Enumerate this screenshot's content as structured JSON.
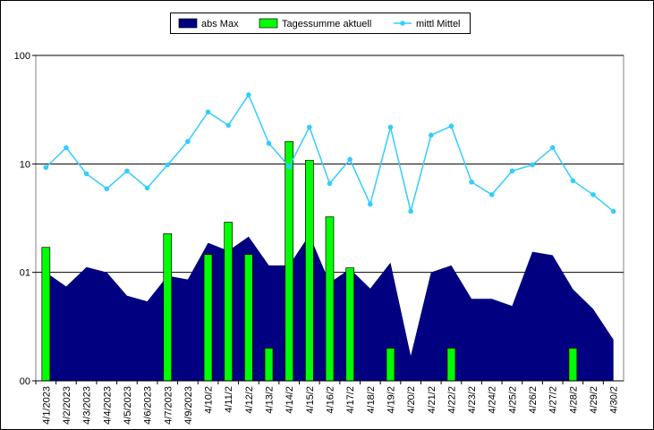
{
  "chart_data": {
    "type": "combo",
    "categories": [
      "4/1/2023",
      "4/2/2023",
      "4/3/2023",
      "4/4/2023",
      "4/5/2023",
      "4/6/2023",
      "4/7/2023",
      "4/9/2023",
      "4/10/2",
      "4/11/2",
      "4/12/2",
      "4/13/2",
      "4/14/2",
      "4/15/2",
      "4/16/2",
      "4/17/2",
      "4/18/2",
      "4/19/2",
      "4/20/2",
      "4/21/2",
      "4/22/2",
      "4/23/2",
      "4/24/2",
      "4/25/2",
      "4/26/2",
      "4/27/2",
      "4/28/2",
      "4/29/2",
      "4/30/2"
    ],
    "series": [
      {
        "name": "abs Max",
        "type": "area",
        "color": "#000080",
        "values": [
          1.0,
          0.74,
          1.12,
          1.0,
          0.61,
          0.54,
          0.93,
          0.86,
          1.87,
          1.58,
          2.14,
          1.16,
          1.16,
          2.22,
          0.8,
          1.08,
          0.71,
          1.23,
          0.17,
          1.0,
          1.16,
          0.57,
          0.57,
          0.49,
          1.55,
          1.44,
          0.7,
          0.46,
          0.24
        ]
      },
      {
        "name": "Tagessumme aktuell",
        "type": "bar",
        "color": "#00ff00",
        "values": [
          1.7,
          null,
          null,
          null,
          null,
          null,
          2.27,
          null,
          1.46,
          2.9,
          1.46,
          0.2,
          16.1,
          10.8,
          3.25,
          1.1,
          null,
          0.2,
          null,
          null,
          0.2,
          null,
          null,
          null,
          null,
          null,
          0.2,
          null,
          null
        ]
      },
      {
        "name": "mittl Mittel",
        "type": "line",
        "color": "#33ccff",
        "values": [
          9.28,
          14.1,
          8.1,
          5.9,
          8.6,
          6.0,
          9.8,
          16.1,
          30.1,
          22.7,
          43.3,
          15.5,
          9.4,
          21.8,
          6.6,
          11.0,
          4.25,
          21.8,
          3.65,
          18.4,
          22.3,
          6.8,
          5.2,
          8.6,
          9.8,
          14.1,
          7.0,
          5.2,
          3.65
        ]
      }
    ],
    "ylim": [
      0.1,
      100
    ],
    "yticks": [
      {
        "value": 0.1,
        "label": "00"
      },
      {
        "value": 1,
        "label": "01"
      },
      10,
      100
    ],
    "log_scale": true,
    "grid": true,
    "legend": "top"
  }
}
